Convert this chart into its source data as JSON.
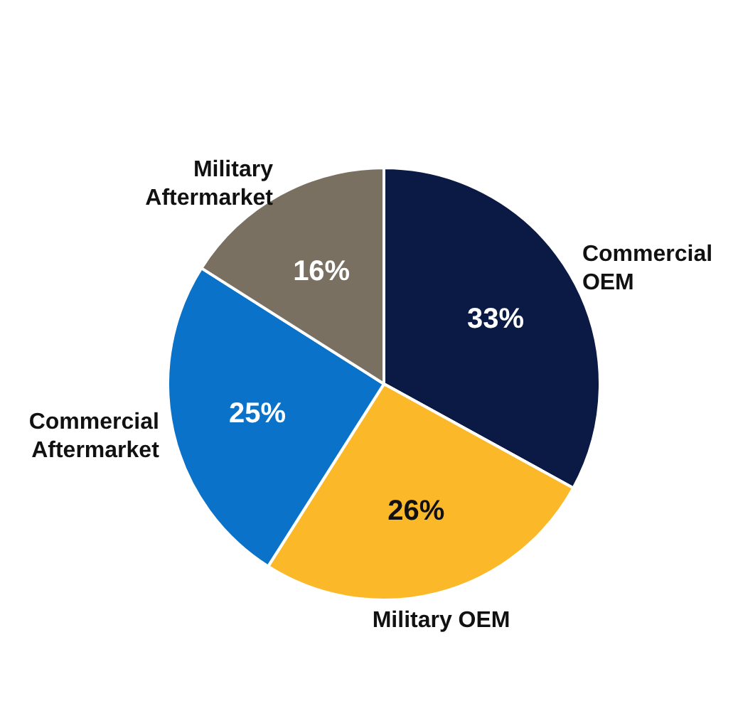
{
  "chart_data": {
    "type": "pie",
    "categories": [
      "Commercial OEM",
      "Military OEM",
      "Commercial Aftermarket",
      "Military Aftermarket"
    ],
    "values": [
      33,
      26,
      25,
      16
    ],
    "colors": [
      "#0b1a45",
      "#fbb829",
      "#0a72c9",
      "#7a7062"
    ],
    "value_labels": [
      "33%",
      "26%",
      "25%",
      "16%"
    ],
    "legend": false
  }
}
